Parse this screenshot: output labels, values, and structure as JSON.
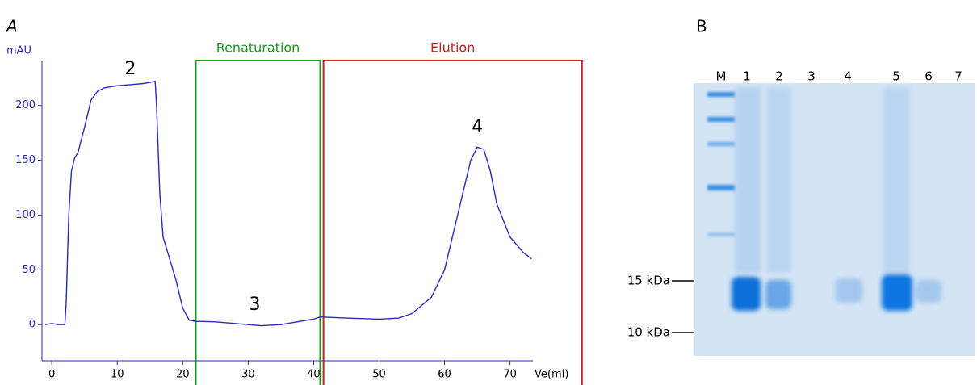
{
  "panel_labels": [
    "A",
    "B"
  ],
  "chart_data": {
    "type": "line",
    "xlabel": "Ve(ml)",
    "ylabel": "mAU",
    "x": [
      -1,
      0,
      1,
      2,
      2.2,
      2.6,
      3,
      3.5,
      4,
      5,
      6,
      7,
      8,
      10,
      12,
      14,
      15.8,
      16,
      16.5,
      17,
      18,
      19,
      20,
      21,
      22,
      25,
      28,
      32,
      35,
      38,
      40,
      41,
      45,
      50,
      53,
      55,
      58,
      60,
      62,
      64,
      65,
      66,
      67,
      68,
      70,
      72,
      73.3
    ],
    "series": [
      {
        "color": "#2a2ab8",
        "values": [
          0,
          1,
          0,
          0,
          20,
          100,
          140,
          152,
          157,
          180,
          205,
          213,
          216,
          218,
          219,
          220,
          222,
          200,
          120,
          80,
          60,
          40,
          15,
          4,
          3,
          2.5,
          1,
          -1,
          0,
          3,
          5,
          7,
          6,
          5,
          6,
          10,
          25,
          50,
          100,
          150,
          162,
          160,
          140,
          110,
          80,
          66,
          60
        ]
      }
    ],
    "xlim": [
      -1.5,
      73.5
    ],
    "ylim": [
      -33,
      241
    ],
    "xticks": [
      0,
      10,
      20,
      30,
      40,
      50,
      60,
      70
    ],
    "yticks": [
      0,
      50,
      100,
      150,
      200
    ],
    "regions": [
      {
        "label": "Renaturation",
        "start": 22,
        "end": 41,
        "color": "#1a9a1a"
      },
      {
        "label": "Elution",
        "start": 41.5,
        "end": 81,
        "color": "#c82020"
      }
    ],
    "annotations": [
      {
        "text": "2",
        "x": 12,
        "y": 233
      },
      {
        "text": "3",
        "x": 31,
        "y": 18
      },
      {
        "text": "4",
        "x": 65,
        "y": 180
      }
    ]
  },
  "gel": {
    "lanes": [
      "M",
      "1",
      "2",
      "3",
      "4",
      "5",
      "6",
      "7"
    ],
    "markers": [
      "15 kDa",
      "10 kDa"
    ]
  }
}
